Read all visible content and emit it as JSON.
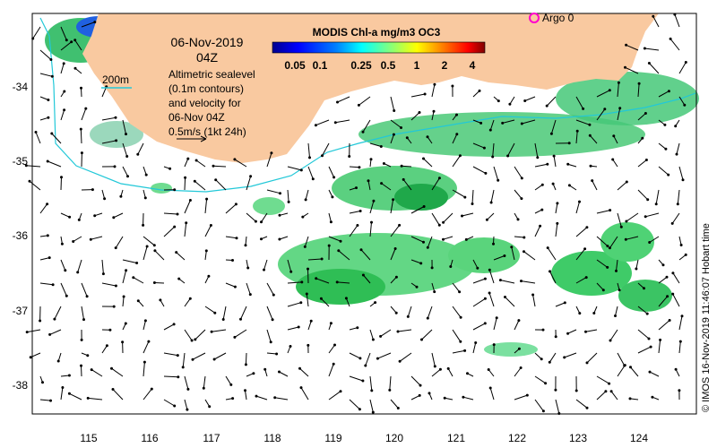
{
  "map": {
    "date": "06-Nov-2019",
    "time": "04Z",
    "colorbar": {
      "title": "MODIS Chl-a mg/m3 OC3",
      "ticks": [
        "0.05",
        "0.1",
        "0.25",
        "0.5",
        "1",
        "2",
        "4"
      ],
      "colors": [
        "#00008f",
        "#0000ff",
        "#0080ff",
        "#00ffff",
        "#80ff80",
        "#ffff00",
        "#ff8000",
        "#ff0000",
        "#800000"
      ]
    },
    "legend_lines": [
      "Altimetric sealevel",
      "(0.1m contours)",
      "and velocity for",
      "06-Nov 04Z",
      "0.5m/s (1kt 24h)"
    ],
    "contour_label": "200m",
    "argo_label": "Argo 0",
    "credit": "© IMOS 16-Nov-2019 11:46:07 Hobart time",
    "lat_ticks": [
      "-34",
      "-35",
      "-36",
      "-37",
      "-38"
    ],
    "lon_ticks": [
      "115",
      "116",
      "117",
      "118",
      "119",
      "120",
      "121",
      "122",
      "123",
      "124"
    ],
    "land_color": "#f9c9a0",
    "isobath_color": "#22c8d8",
    "argo_color": "#ff00cc"
  }
}
